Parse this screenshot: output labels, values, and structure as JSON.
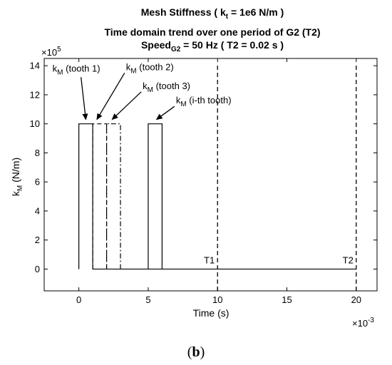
{
  "chart_data": {
    "type": "line",
    "title_line1": "Mesh Stiffness ( k",
    "title_line1_sub": "t",
    "title_line1_end": " = 1e6 N/m )",
    "title_line2": "Time domain trend over one period of G2 (T2)",
    "title_line3": "Speed",
    "title_line3_sub": "G2",
    "title_line3_end": " = 50 Hz ( T2 = 0.02 s )",
    "xlabel": "Time (s)",
    "ylabel_main": "k",
    "ylabel_sub": "M",
    "ylabel_end": " (N/m)",
    "x_multiplier_base": "×10",
    "x_multiplier_exp": "-3",
    "y_multiplier_base": "×10",
    "y_multiplier_exp": "5",
    "xlim": [
      -2.5,
      21.5
    ],
    "ylim": [
      -1.5,
      14.5
    ],
    "x_ticks": [
      0,
      5,
      10,
      15,
      20
    ],
    "y_ticks": [
      0,
      2,
      4,
      6,
      8,
      10,
      12,
      14
    ],
    "grid": false,
    "series": [
      {
        "name": "tooth 1",
        "style": "solid",
        "x": [
          0,
          0,
          1,
          1,
          20
        ],
        "y": [
          0,
          10,
          10,
          0,
          0
        ]
      },
      {
        "name": "tooth 2",
        "style": "dashed",
        "x": [
          1,
          1,
          2,
          2
        ],
        "y": [
          0,
          10,
          10,
          0
        ]
      },
      {
        "name": "tooth 3",
        "style": "dashdot",
        "x": [
          2,
          2,
          3,
          3
        ],
        "y": [
          0,
          10,
          10,
          0
        ]
      },
      {
        "name": "i-th tooth",
        "style": "solid",
        "x": [
          5,
          5,
          6,
          6
        ],
        "y": [
          0,
          10,
          10,
          0
        ]
      }
    ],
    "vlines": [
      {
        "x": 10,
        "label": "T1",
        "style": "dashed"
      },
      {
        "x": 20,
        "label": "T2",
        "style": "dashed"
      }
    ],
    "annotations": [
      {
        "main": "k",
        "sub": "M",
        "text": " (tooth 1)",
        "tx": -1.9,
        "ty": 13.6,
        "ax": 0.5,
        "ay": 10.3
      },
      {
        "main": "k",
        "sub": "M",
        "text": " (tooth 2)",
        "tx": 3.4,
        "ty": 13.7,
        "ax": 1.3,
        "ay": 10.3
      },
      {
        "main": "k",
        "sub": "M",
        "text": " (tooth 3)",
        "tx": 4.6,
        "ty": 12.4,
        "ax": 2.4,
        "ay": 10.3
      },
      {
        "main": "k",
        "sub": "M",
        "text": " (i-th tooth)",
        "tx": 7.0,
        "ty": 11.4,
        "ax": 5.6,
        "ay": 10.3
      }
    ]
  },
  "caption": {
    "open": "(",
    "letter": "b",
    "close": ")"
  }
}
